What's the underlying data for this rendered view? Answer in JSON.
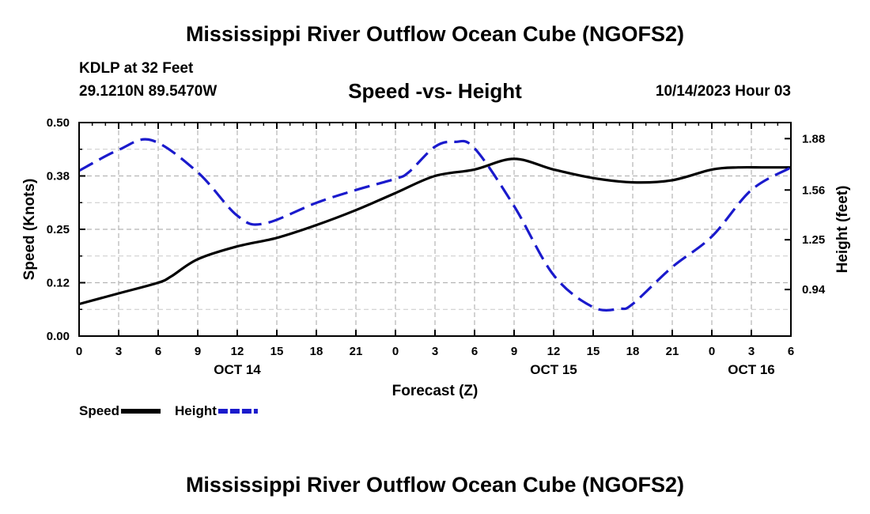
{
  "header": {
    "title": "Mississippi River Outflow Ocean Cube (NGOFS2)",
    "station": "KDLP at 32 Feet",
    "coords": "29.1210N  89.5470W",
    "subtitle": "Speed -vs- Height",
    "datetime": "10/14/2023 Hour 03"
  },
  "footer": {
    "title": "Mississippi River Outflow Ocean Cube (NGOFS2)"
  },
  "chart_data": {
    "type": "line",
    "title": "Speed -vs- Height",
    "xlabel": "Forecast (Z)",
    "ylabel": "Speed (Knots)",
    "y2label": "Height (feet)",
    "xlim": [
      0,
      54
    ],
    "ylim": [
      0,
      0.5
    ],
    "y2lim": [
      0.65,
      1.98
    ],
    "x_ticks": [
      0,
      3,
      6,
      9,
      12,
      15,
      18,
      21,
      24,
      27,
      30,
      33,
      36,
      39,
      42,
      45,
      48,
      51,
      54
    ],
    "x_tick_labels": [
      "0",
      "3",
      "6",
      "9",
      "12",
      "15",
      "18",
      "21",
      "0",
      "3",
      "6",
      "9",
      "12",
      "15",
      "18",
      "21",
      "0",
      "3",
      "6"
    ],
    "date_labels": [
      {
        "x": 12,
        "label": "OCT 14"
      },
      {
        "x": 36,
        "label": "OCT 15"
      },
      {
        "x": 51,
        "label": "OCT 16"
      }
    ],
    "y_ticks": [
      0.0,
      0.125,
      0.25,
      0.375,
      0.5
    ],
    "y_tick_labels": [
      "0.00",
      "0.12",
      "0.25",
      "0.38",
      "0.50"
    ],
    "y2_ticks": [
      0.94,
      1.25,
      1.56,
      1.88
    ],
    "y2_tick_labels": [
      "0.94",
      "1.25",
      "1.56",
      "1.88"
    ],
    "grid": true,
    "legend_position": "bottom-left",
    "series": [
      {
        "name": "Speed",
        "axis": "left",
        "color": "#000000",
        "style": "solid",
        "x": [
          0,
          3,
          6,
          7,
          9,
          12,
          15,
          18,
          21,
          24,
          27,
          30,
          33,
          36,
          39,
          42,
          45,
          48,
          50,
          52,
          54
        ],
        "values": [
          0.075,
          0.1,
          0.125,
          0.14,
          0.18,
          0.21,
          0.23,
          0.26,
          0.295,
          0.335,
          0.375,
          0.39,
          0.415,
          0.39,
          0.37,
          0.36,
          0.365,
          0.39,
          0.395,
          0.395,
          0.395
        ]
      },
      {
        "name": "Height",
        "axis": "right",
        "color": "#1a1acc",
        "style": "dashed",
        "x": [
          0,
          3,
          5.5,
          9,
          12,
          14,
          18,
          21,
          24,
          25,
          27,
          28.5,
          30,
          33,
          36,
          39,
          41,
          42,
          45,
          48,
          51,
          54
        ],
        "values": [
          1.68,
          1.81,
          1.87,
          1.67,
          1.4,
          1.35,
          1.48,
          1.56,
          1.63,
          1.67,
          1.83,
          1.86,
          1.82,
          1.46,
          1.03,
          0.83,
          0.82,
          0.85,
          1.08,
          1.27,
          1.56,
          1.7
        ]
      }
    ]
  }
}
